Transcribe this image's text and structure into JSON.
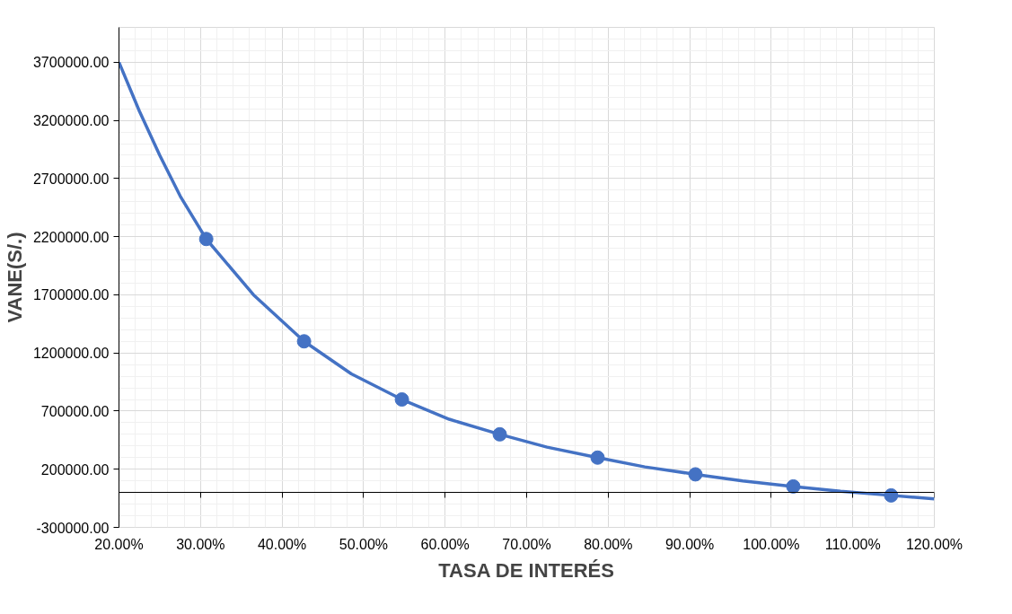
{
  "chart_data": {
    "type": "line",
    "xlabel": "TASA DE INTERÉS",
    "ylabel": "VANE(S/.)",
    "xlim": [
      20,
      120
    ],
    "ylim": [
      -300000,
      4000000
    ],
    "xticks": [
      {
        "value": 20,
        "label": "20.00%"
      },
      {
        "value": 30,
        "label": "30.00%"
      },
      {
        "value": 40,
        "label": "40.00%"
      },
      {
        "value": 50,
        "label": "50.00%"
      },
      {
        "value": 60,
        "label": "60.00%"
      },
      {
        "value": 70,
        "label": "70.00%"
      },
      {
        "value": 80,
        "label": "80.00%"
      },
      {
        "value": 90,
        "label": "90.00%"
      },
      {
        "value": 100,
        "label": "100.00%"
      },
      {
        "value": 110,
        "label": "110.00%"
      },
      {
        "value": 120,
        "label": "120.00%"
      }
    ],
    "yticks": [
      {
        "value": -300000,
        "label": "-300000.00"
      },
      {
        "value": 200000,
        "label": "200000.00"
      },
      {
        "value": 700000,
        "label": "700000.00"
      },
      {
        "value": 1200000,
        "label": "1200000.00"
      },
      {
        "value": 1700000,
        "label": "1700000.00"
      },
      {
        "value": 2200000,
        "label": "2200000.00"
      },
      {
        "value": 2700000,
        "label": "2700000.00"
      },
      {
        "value": 3200000,
        "label": "3200000.00"
      },
      {
        "value": 3700000,
        "label": "3700000.00"
      }
    ],
    "grid": true,
    "line_style": "solid",
    "series": [
      {
        "color": "#4472c4",
        "x": [
          20,
          22.5,
          25,
          27.5,
          30.7,
          36.5,
          42.7,
          48.5,
          54.7,
          60.5,
          66.7,
          72.5,
          78.7,
          84.5,
          90.7,
          96.5,
          102.7,
          108.5,
          114.7,
          120
        ],
        "values": [
          3700000,
          3280000,
          2900000,
          2550000,
          2180000,
          1700000,
          1300000,
          1020000,
          800000,
          630000,
          500000,
          390000,
          300000,
          220000,
          156000,
          100000,
          52000,
          10000,
          -25000,
          -55000
        ]
      },
      {
        "type": "scatter",
        "marker": "circle",
        "color": "#4472c4",
        "x": [
          30.7,
          42.7,
          54.7,
          66.7,
          78.7,
          90.7,
          102.7,
          114.7
        ],
        "values": [
          2180000,
          1300000,
          800000,
          500000,
          300000,
          156000,
          52000,
          -25000
        ]
      }
    ]
  }
}
